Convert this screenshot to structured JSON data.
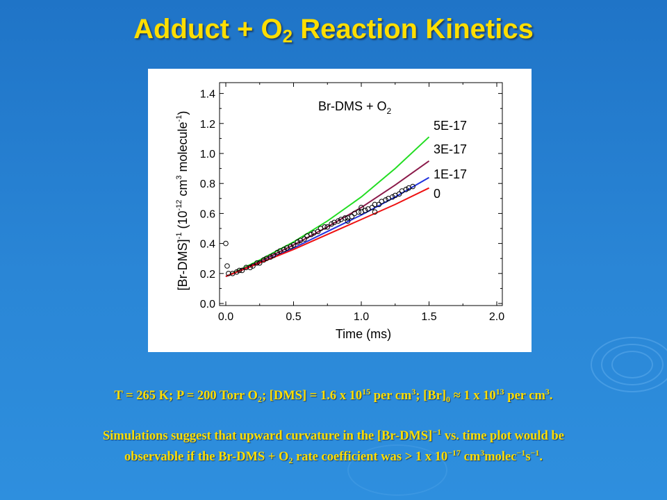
{
  "slide": {
    "title_pre": "Adduct + O",
    "title_sub": "2",
    "title_post": " Reaction Kinetics"
  },
  "conditions": {
    "p1": "T = 265 K; P = 200 Torr O",
    "s1": "2",
    "p2": "; [DMS] = 1.6 x 10",
    "e1": "15",
    "p3": " per cm",
    "e2": "3",
    "p4": "; [Br]",
    "s2": "0",
    "p5": " ≈ 1 x 10",
    "e3": "13",
    "p6": " per cm",
    "e4": "3",
    "p7": "."
  },
  "conclusion": {
    "l1a": "Simulations suggest that upward curvature in the [Br-DMS]",
    "l1e": "−1",
    "l1b": " vs. time plot would be",
    "l2a": "observable if the Br-DMS + O",
    "l2s": "2",
    "l2b": " rate coefficient was > 1 x 10",
    "l2e1": "−17",
    "l2c": " cm",
    "l2e2": "3",
    "l2d": "molec",
    "l2e3": "−1",
    "l2f": "s",
    "l2e4": "−1",
    "l2g": "."
  },
  "chart_data": {
    "type": "line",
    "annotation_main": "Br-DMS + O",
    "annotation_sub": "2",
    "xlabel": "Time (ms)",
    "ylabel_parts": {
      "a": "[Br-DMS]",
      "a_sup": "-1",
      "b": " (10",
      "b_sup": "-12",
      "c": " cm",
      "c_sup": "3",
      "d": " molecule",
      "d_sup": "-1",
      "e": ")"
    },
    "xlim": [
      0.0,
      2.0
    ],
    "ylim": [
      0.0,
      1.5
    ],
    "x_ticks": [
      "0.0",
      "0.5",
      "1.0",
      "1.5",
      "2.0"
    ],
    "y_ticks": [
      "0.0",
      "0.2",
      "0.4",
      "0.6",
      "0.8",
      "1.0",
      "1.2",
      "1.4"
    ],
    "series": [
      {
        "name": "5E-17",
        "color": "#22dd22",
        "x": [
          0.0,
          0.25,
          0.5,
          0.75,
          1.0,
          1.25,
          1.5
        ],
        "values": [
          0.18,
          0.29,
          0.41,
          0.55,
          0.71,
          0.9,
          1.11
        ]
      },
      {
        "name": "3E-17",
        "color": "#8b1a4a",
        "x": [
          0.0,
          0.25,
          0.5,
          0.75,
          1.0,
          1.25,
          1.5
        ],
        "values": [
          0.18,
          0.28,
          0.39,
          0.51,
          0.64,
          0.79,
          0.95
        ]
      },
      {
        "name": "1E-17",
        "color": "#2233dd",
        "x": [
          0.0,
          0.25,
          0.5,
          0.75,
          1.0,
          1.25,
          1.5
        ],
        "values": [
          0.18,
          0.27,
          0.37,
          0.48,
          0.59,
          0.71,
          0.84
        ]
      },
      {
        "name": "0",
        "color": "#ee1111",
        "x": [
          0.0,
          0.25,
          0.5,
          0.75,
          1.0,
          1.25,
          1.5
        ],
        "values": [
          0.18,
          0.27,
          0.36,
          0.46,
          0.56,
          0.66,
          0.77
        ]
      }
    ],
    "observed": {
      "x": [
        0.02,
        0.05,
        0.08,
        0.1,
        0.12,
        0.15,
        0.18,
        0.2,
        0.23,
        0.25,
        0.28,
        0.3,
        0.33,
        0.35,
        0.38,
        0.4,
        0.43,
        0.45,
        0.48,
        0.5,
        0.53,
        0.55,
        0.58,
        0.6,
        0.63,
        0.65,
        0.68,
        0.7,
        0.73,
        0.75,
        0.78,
        0.8,
        0.83,
        0.85,
        0.88,
        0.9,
        0.93,
        0.95,
        0.98,
        1.0,
        1.03,
        1.05,
        1.08,
        1.1,
        1.13,
        1.15,
        1.18,
        1.2,
        1.23,
        1.25,
        1.28,
        1.3,
        1.33,
        1.35,
        1.38,
        0.0,
        0.01,
        1.0,
        1.1,
        0.9
      ],
      "values": [
        0.2,
        0.2,
        0.21,
        0.22,
        0.22,
        0.24,
        0.24,
        0.25,
        0.27,
        0.27,
        0.29,
        0.3,
        0.31,
        0.32,
        0.34,
        0.35,
        0.36,
        0.37,
        0.38,
        0.39,
        0.41,
        0.42,
        0.43,
        0.45,
        0.46,
        0.47,
        0.48,
        0.5,
        0.51,
        0.51,
        0.53,
        0.54,
        0.55,
        0.56,
        0.57,
        0.57,
        0.58,
        0.6,
        0.61,
        0.61,
        0.62,
        0.63,
        0.64,
        0.66,
        0.66,
        0.68,
        0.69,
        0.7,
        0.71,
        0.72,
        0.73,
        0.75,
        0.76,
        0.77,
        0.78,
        0.4,
        0.25,
        0.64,
        0.61,
        0.55
      ]
    }
  }
}
